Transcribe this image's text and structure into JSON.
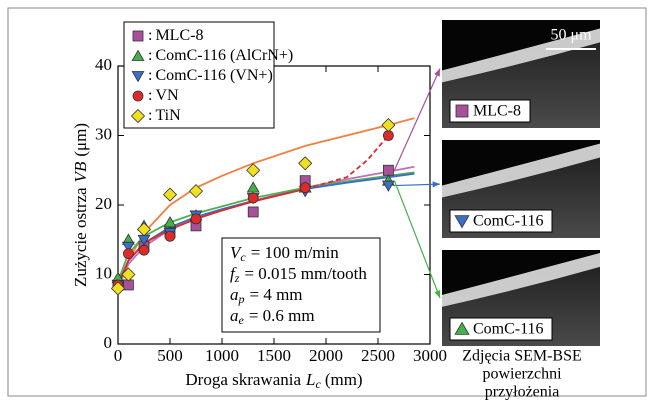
{
  "chart_data": {
    "type": "scatter",
    "y_label": {
      "text": "Zużycie ostrza",
      "symbol": "VB",
      "unit": "(μm)"
    },
    "x_label": {
      "text": "Droga skrawania",
      "symbol": "L",
      "sub": "c",
      "unit": "(mm)"
    },
    "xlim": [
      0,
      3000
    ],
    "xticks": [
      0,
      500,
      1000,
      1500,
      2000,
      2500,
      3000
    ],
    "ylim": [
      0,
      40
    ],
    "yticks": [
      0,
      10,
      20,
      30,
      40
    ],
    "x": [
      0,
      100,
      250,
      500,
      750,
      1300,
      1800,
      2600
    ],
    "legend_prefix": ":",
    "series": [
      {
        "name": "MLC-8",
        "marker": "square",
        "color": "#a8509c",
        "values": [
          8.5,
          8.5,
          14,
          16,
          17,
          19,
          23.5,
          25
        ]
      },
      {
        "name": "ComC-116 (AlCrN+)",
        "marker": "triangle-up",
        "color": "#44b04a",
        "values": [
          9.5,
          15,
          17,
          17.5,
          18.5,
          22.5,
          22.5,
          23.5
        ]
      },
      {
        "name": "ComC-116 (VN+)",
        "marker": "triangle-down",
        "color": "#3a6fc4",
        "values": [
          8.5,
          14,
          15,
          16,
          18.5,
          21,
          22,
          22.8
        ]
      },
      {
        "name": "VN",
        "marker": "circle",
        "color": "#e02a2a",
        "values": [
          8.5,
          13,
          13.5,
          15.5,
          18,
          21,
          22.5,
          30
        ]
      },
      {
        "name": "TiN",
        "marker": "diamond",
        "color": "#f0e020",
        "values": [
          8,
          10,
          16.5,
          21.5,
          22,
          25,
          26,
          31.5
        ]
      }
    ],
    "fits": [
      {
        "color": "#f08040",
        "x": [
          0,
          100,
          250,
          500,
          750,
          1000,
          1300,
          1800,
          2200,
          2600,
          2850
        ],
        "values": [
          8,
          12,
          16,
          20,
          22.5,
          24.2,
          26,
          28.5,
          30,
          31.5,
          32.5
        ]
      },
      {
        "color": "#c070b8",
        "x": [
          0,
          100,
          250,
          500,
          750,
          1000,
          1300,
          1800,
          2200,
          2600,
          2850
        ],
        "values": [
          8,
          11.5,
          14,
          16.5,
          18,
          19.3,
          20.6,
          22.5,
          23.7,
          24.8,
          25.5
        ]
      },
      {
        "color": "#50b050",
        "x": [
          0,
          100,
          250,
          500,
          750,
          1000,
          1300,
          1800,
          2200,
          2600,
          2850
        ],
        "values": [
          9,
          13,
          15.5,
          17.5,
          18.8,
          19.8,
          21,
          22.5,
          23.4,
          24.2,
          24.7
        ]
      },
      {
        "color": "#3a6fc4",
        "x": [
          0,
          100,
          250,
          500,
          750,
          1000,
          1300,
          1800,
          2200,
          2600,
          2850
        ],
        "values": [
          8.5,
          12,
          14.5,
          16.8,
          18.3,
          19.4,
          20.6,
          22.3,
          23.2,
          24,
          24.5
        ]
      },
      {
        "color": "#e02a2a",
        "x": [
          0,
          100,
          250,
          500,
          750,
          1000,
          1300,
          1800
        ],
        "values": [
          8.5,
          12,
          14.5,
          16.5,
          18,
          19.2,
          20.5,
          22.3
        ]
      },
      {
        "color": "#e02a2a",
        "dashed": true,
        "x": [
          1800,
          2200,
          2400,
          2600
        ],
        "values": [
          22.3,
          24,
          26.5,
          30
        ]
      }
    ],
    "annotation": [
      {
        "symbol": "V",
        "sub": "c",
        "rest": "= 100 m/min"
      },
      {
        "symbol": "f",
        "sub": "z",
        "rest": "= 0.015 mm/tooth"
      },
      {
        "symbol": "a",
        "sub": "p",
        "rest": "= 4 mm"
      },
      {
        "symbol": "a",
        "sub": "e",
        "rest": "= 0.6 mm"
      }
    ],
    "images": {
      "scale_bar": "50 μm",
      "labels": [
        {
          "text": "MLC-8",
          "series": 0
        },
        {
          "text": "ComC-116",
          "series": 2
        },
        {
          "text": "ComC-116",
          "series": 1
        }
      ],
      "caption": [
        "Zdjęcia SEM-BSE",
        "powierzchni",
        "przyłożenia"
      ]
    }
  }
}
